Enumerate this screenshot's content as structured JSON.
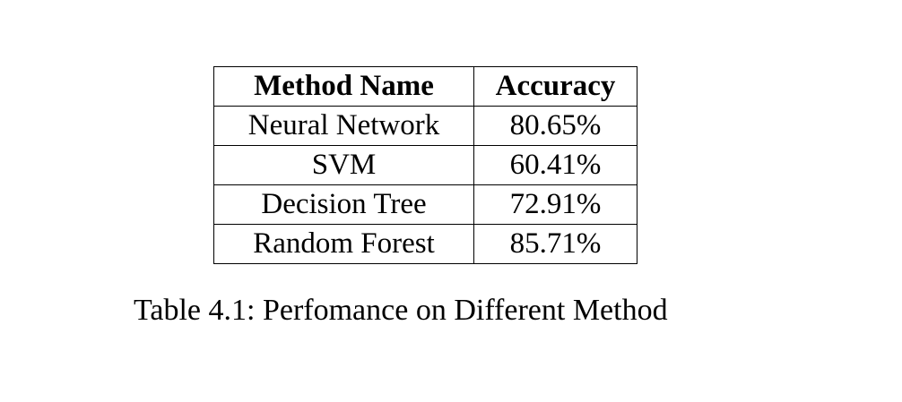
{
  "table": {
    "headers": [
      "Method Name",
      "Accuracy"
    ],
    "rows": [
      [
        "Neural Network",
        "80.65%"
      ],
      [
        "SVM",
        "60.41%"
      ],
      [
        "Decision Tree",
        "72.91%"
      ],
      [
        "Random Forest",
        "85.71%"
      ]
    ]
  },
  "caption": "Table 4.1: Perfomance on Different Method"
}
